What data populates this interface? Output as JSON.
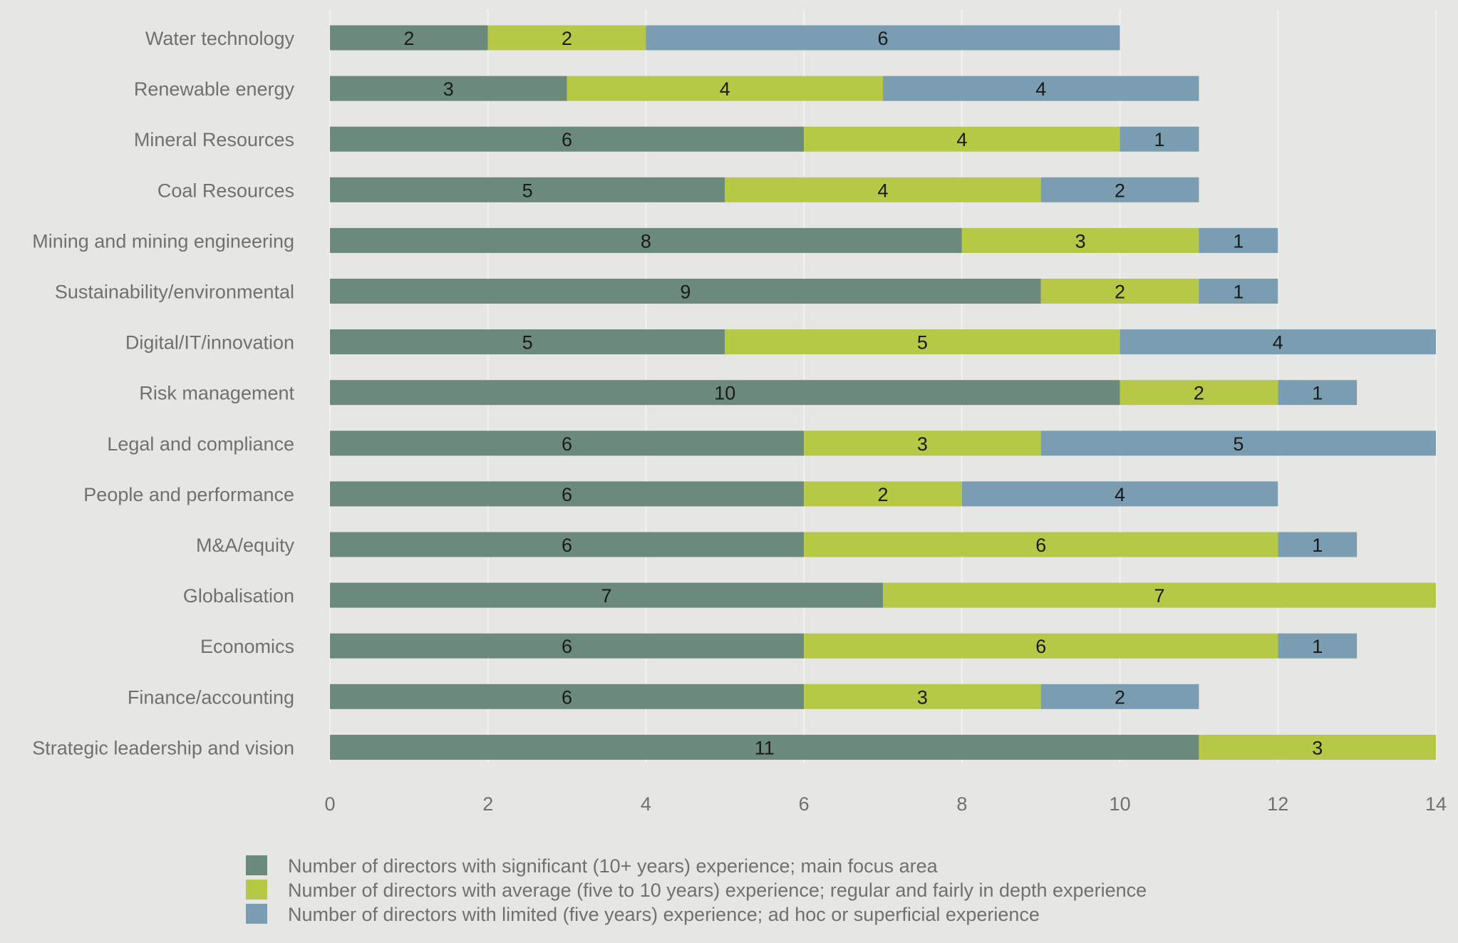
{
  "chart_data": {
    "type": "bar",
    "orientation": "horizontal",
    "stacked": true,
    "title": "",
    "xlabel": "",
    "ylabel": "",
    "xlim": [
      0,
      14
    ],
    "xticks": [
      "0",
      "2",
      "4",
      "6",
      "8",
      "10",
      "12",
      "14"
    ],
    "grid": "vertical",
    "legend_position": "bottom",
    "categories": [
      "Water technology",
      "Renewable energy",
      "Mineral Resources",
      "Coal Resources",
      "Mining and mining engineering",
      "Sustainability/environmental",
      "Digital/IT/innovation",
      "Risk management",
      "Legal and compliance",
      "People and performance",
      "M&A/equity",
      "Globalisation",
      "Economics",
      "Finance/accounting",
      "Strategic leadership and vision"
    ],
    "series": [
      {
        "name": "Number of directors with significant (10+ years) experience; main focus area",
        "color": "#6b8a7c",
        "values": [
          2,
          3,
          6,
          5,
          8,
          9,
          5,
          10,
          6,
          6,
          6,
          7,
          6,
          6,
          11
        ]
      },
      {
        "name": "Number of directors with average (five to 10 years) experience; regular and fairly in depth experience",
        "color": "#b6c846",
        "values": [
          2,
          4,
          4,
          4,
          3,
          2,
          5,
          2,
          3,
          2,
          6,
          7,
          6,
          3,
          3
        ]
      },
      {
        "name": "Number of directors with limited (five years) experience; ad hoc or superficial experience",
        "color": "#7a9db1",
        "values": [
          6,
          4,
          1,
          2,
          1,
          1,
          4,
          1,
          5,
          4,
          1,
          0,
          1,
          2,
          0
        ]
      }
    ]
  }
}
